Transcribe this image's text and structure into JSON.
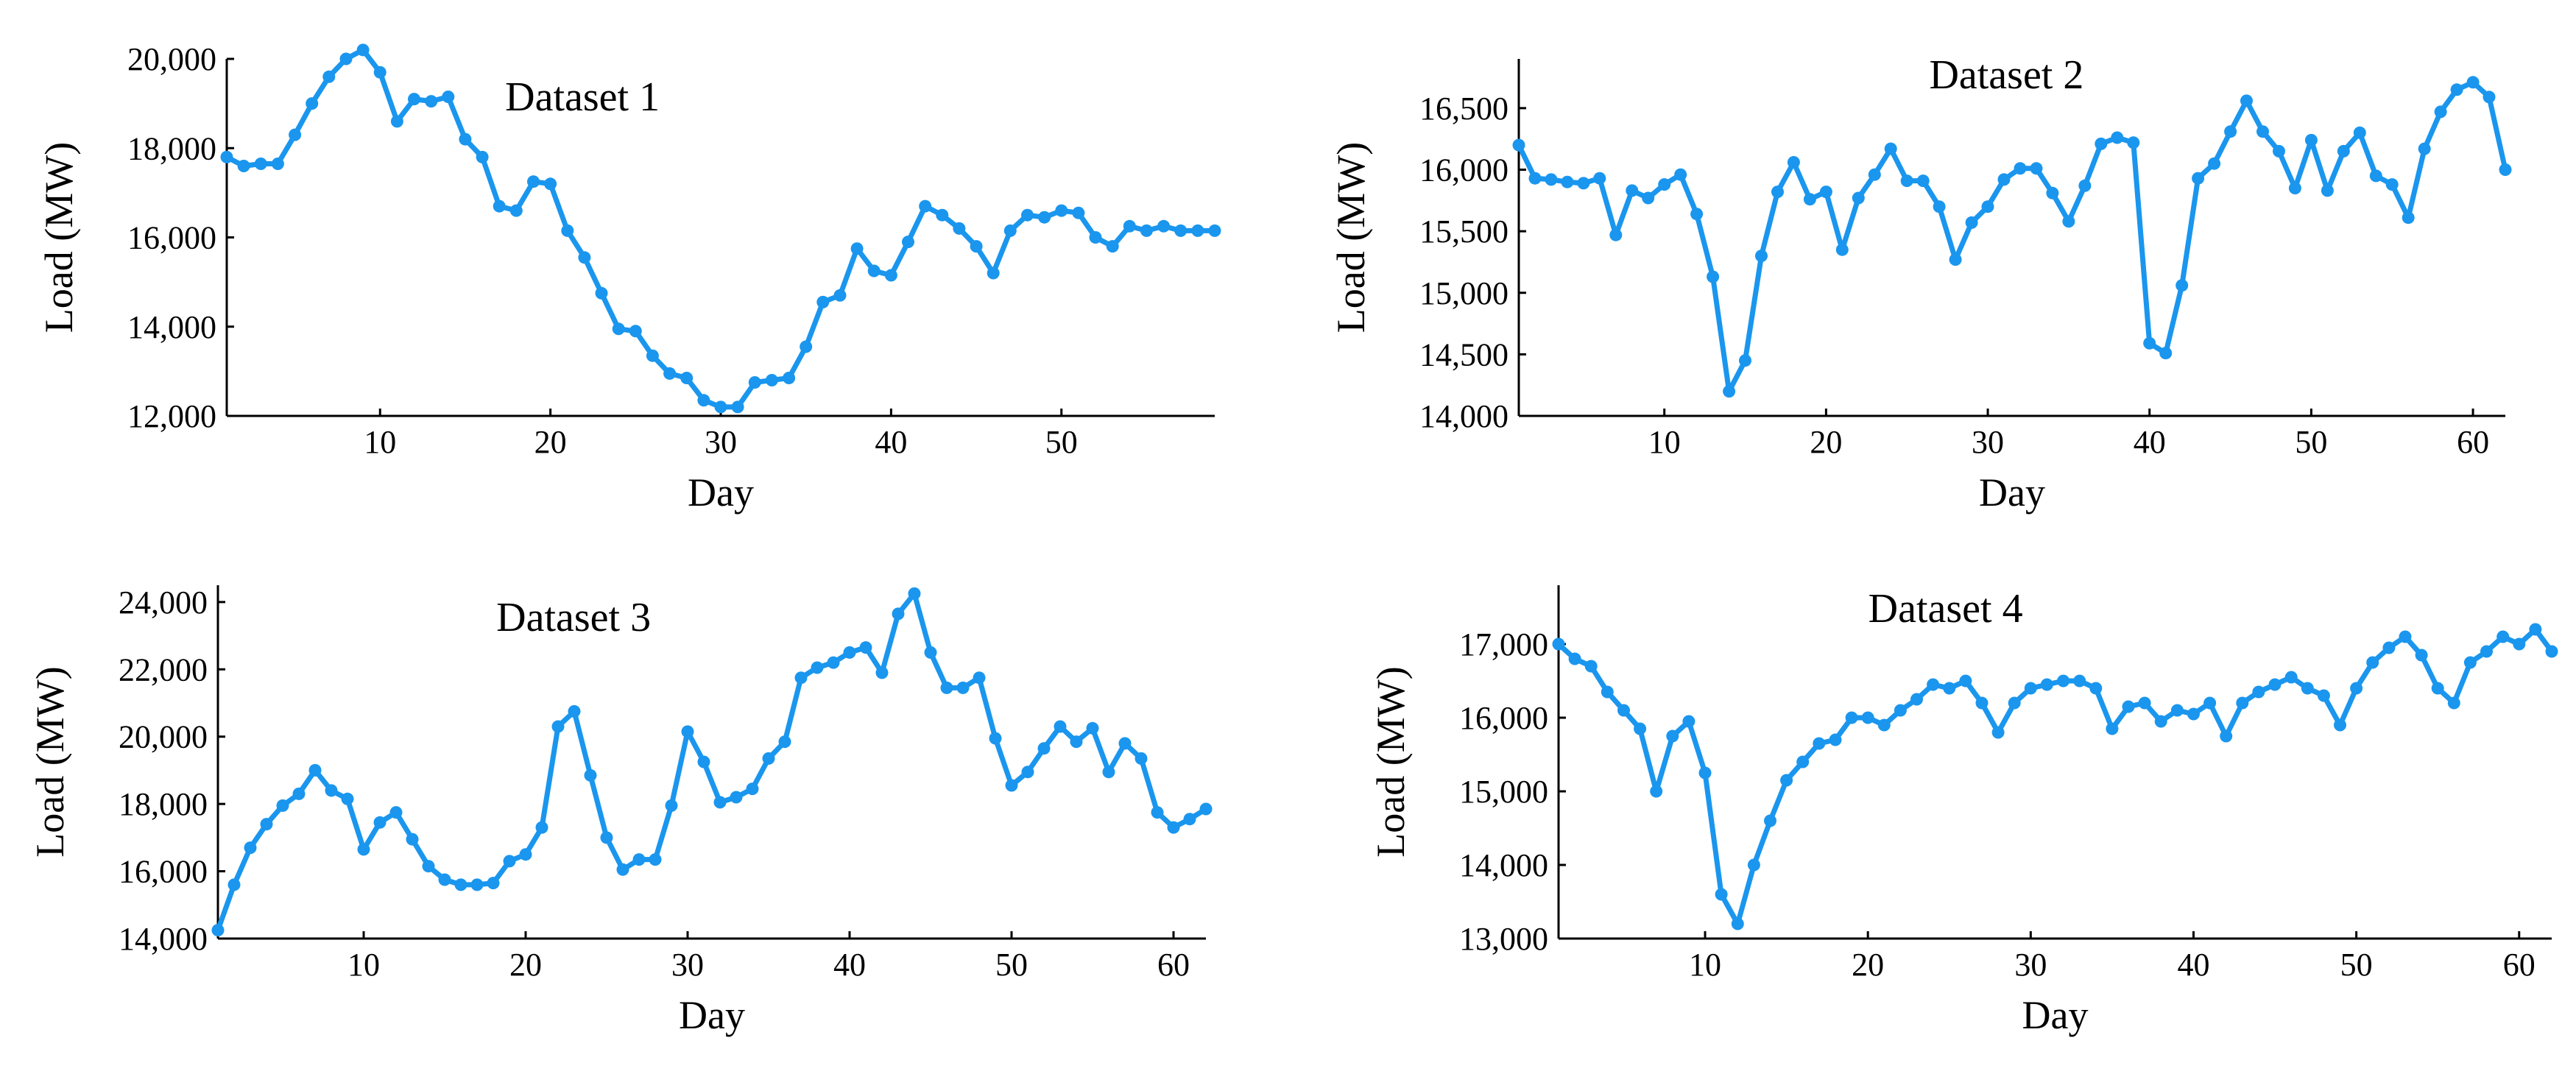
{
  "colors": {
    "series": "#1a96ee",
    "axis": "#000000",
    "background": "#ffffff"
  },
  "chart_data": [
    {
      "type": "line",
      "title": "Dataset 1",
      "xlabel": "Day",
      "ylabel": "Load (MW)",
      "xlim": [
        1,
        59
      ],
      "ylim": [
        12000,
        20000
      ],
      "xticks": [
        10,
        20,
        30,
        40,
        50
      ],
      "yticks": [
        12000,
        14000,
        16000,
        18000,
        20000
      ],
      "ytick_labels": [
        "12,000",
        "14,000",
        "16,000",
        "18,000",
        "20,000"
      ],
      "grid": false,
      "x": [
        1,
        2,
        3,
        4,
        5,
        6,
        7,
        8,
        9,
        10,
        11,
        12,
        13,
        14,
        15,
        16,
        17,
        18,
        19,
        20,
        21,
        22,
        23,
        24,
        25,
        26,
        27,
        28,
        29,
        30,
        31,
        32,
        33,
        34,
        35,
        36,
        37,
        38,
        39,
        40,
        41,
        42,
        43,
        44,
        45,
        46,
        47,
        48,
        49,
        50,
        51,
        52,
        53,
        54,
        55,
        56,
        57,
        58,
        59
      ],
      "series": [
        {
          "values": [
            17800,
            17600,
            17650,
            17650,
            18300,
            19000,
            19600,
            20000,
            20200,
            19700,
            18600,
            19100,
            19050,
            19150,
            18200,
            17800,
            16700,
            16600,
            17250,
            17200,
            16150,
            15550,
            14750,
            13950,
            13900,
            13350,
            12950,
            12850,
            12350,
            12200,
            12200,
            12750,
            12800,
            12850,
            13550,
            14550,
            14700,
            15750,
            15250,
            15150,
            15900,
            16700,
            16500,
            16200,
            15800,
            15200,
            16150,
            16500,
            16450,
            16600,
            16550,
            16000,
            15800,
            16250,
            16150,
            16250,
            16150,
            16150,
            16150
          ]
        }
      ]
    },
    {
      "type": "line",
      "title": "Dataset 2",
      "xlabel": "Day",
      "ylabel": "Load (MW)",
      "xlim": [
        1,
        62
      ],
      "ylim": [
        14000,
        16900
      ],
      "xticks": [
        10,
        20,
        30,
        40,
        50,
        60
      ],
      "yticks": [
        14000,
        14500,
        15000,
        15500,
        16000,
        16500
      ],
      "ytick_labels": [
        "14,000",
        "14,500",
        "15,000",
        "15,500",
        "16,000",
        "16,500"
      ],
      "grid": false,
      "x": [
        1,
        2,
        3,
        4,
        5,
        6,
        7,
        8,
        9,
        10,
        11,
        12,
        13,
        14,
        15,
        16,
        17,
        18,
        19,
        20,
        21,
        22,
        23,
        24,
        25,
        26,
        27,
        28,
        29,
        30,
        31,
        32,
        33,
        34,
        35,
        36,
        37,
        38,
        39,
        40,
        41,
        42,
        43,
        44,
        45,
        46,
        47,
        48,
        49,
        50,
        51,
        52,
        53,
        54,
        55,
        56,
        57,
        58,
        59,
        60,
        61,
        62
      ],
      "series": [
        {
          "values": [
            16200,
            15930,
            15920,
            15900,
            15890,
            15930,
            15470,
            15830,
            15770,
            15880,
            15960,
            15640,
            15130,
            14200,
            14450,
            15300,
            15820,
            16060,
            15760,
            15820,
            15350,
            15770,
            15960,
            16170,
            15910,
            15910,
            15700,
            15270,
            15570,
            15700,
            15920,
            16010,
            16010,
            15810,
            15580,
            15870,
            16210,
            16260,
            16220,
            14590,
            14510,
            15060,
            15930,
            16050,
            16310,
            16560,
            16310,
            16150,
            15850,
            16240,
            15830,
            16150,
            16300,
            15950,
            15880,
            15610,
            16170,
            16470,
            16650,
            16710,
            16590,
            16000
          ]
        }
      ]
    },
    {
      "type": "line",
      "title": "Dataset 3",
      "xlabel": "Day",
      "ylabel": "Load (MW)",
      "xlim": [
        1,
        62
      ],
      "ylim": [
        14000,
        24500
      ],
      "xticks": [
        10,
        20,
        30,
        40,
        50,
        60
      ],
      "yticks": [
        14000,
        16000,
        18000,
        20000,
        22000,
        24000
      ],
      "ytick_labels": [
        "14,000",
        "16,000",
        "18,000",
        "20,000",
        "22,000",
        "24,000"
      ],
      "grid": false,
      "x": [
        1,
        2,
        3,
        4,
        5,
        6,
        7,
        8,
        9,
        10,
        11,
        12,
        13,
        14,
        15,
        16,
        17,
        18,
        19,
        20,
        21,
        22,
        23,
        24,
        25,
        26,
        27,
        28,
        29,
        30,
        31,
        32,
        33,
        34,
        35,
        36,
        37,
        38,
        39,
        40,
        41,
        42,
        43,
        44,
        45,
        46,
        47,
        48,
        49,
        50,
        51,
        52,
        53,
        54,
        55,
        56,
        57,
        58,
        59,
        60,
        61,
        62
      ],
      "series": [
        {
          "values": [
            14250,
            15600,
            16700,
            17400,
            17950,
            18300,
            19000,
            18400,
            18150,
            16650,
            17450,
            17750,
            16950,
            16150,
            15750,
            15600,
            15600,
            15650,
            16300,
            16500,
            17300,
            20300,
            20750,
            18850,
            17000,
            16050,
            16350,
            16350,
            17950,
            20150,
            19250,
            18050,
            18200,
            18450,
            19350,
            19850,
            21750,
            22050,
            22200,
            22500,
            22650,
            21900,
            23650,
            24250,
            22500,
            21450,
            21450,
            21750,
            19950,
            18550,
            18950,
            19650,
            20300,
            19850,
            20250,
            18950,
            19800,
            19350,
            17750,
            17300,
            17550,
            17850
          ]
        }
      ]
    },
    {
      "type": "line",
      "title": "Dataset 4",
      "xlabel": "Day",
      "ylabel": "Load (MW)",
      "xlim": [
        1,
        62
      ],
      "ylim": [
        13000,
        17800
      ],
      "xticks": [
        10,
        20,
        30,
        40,
        50,
        60
      ],
      "yticks": [
        13000,
        14000,
        15000,
        16000,
        17000
      ],
      "ytick_labels": [
        "13,000",
        "14,000",
        "15,000",
        "16,000",
        "17,000"
      ],
      "grid": false,
      "x": [
        1,
        2,
        3,
        4,
        5,
        6,
        7,
        8,
        9,
        10,
        11,
        12,
        13,
        14,
        15,
        16,
        17,
        18,
        19,
        20,
        21,
        22,
        23,
        24,
        25,
        26,
        27,
        28,
        29,
        30,
        31,
        32,
        33,
        34,
        35,
        36,
        37,
        38,
        39,
        40,
        41,
        42,
        43,
        44,
        45,
        46,
        47,
        48,
        49,
        50,
        51,
        52,
        53,
        54,
        55,
        56,
        57,
        58,
        59,
        60,
        61,
        62
      ],
      "series": [
        {
          "values": [
            17000,
            16800,
            16700,
            16350,
            16100,
            15850,
            15000,
            15750,
            15950,
            15250,
            13600,
            13200,
            14000,
            14600,
            15150,
            15400,
            15650,
            15700,
            16000,
            16000,
            15900,
            16100,
            16250,
            16450,
            16400,
            16500,
            16200,
            15800,
            16200,
            16400,
            16450,
            16500,
            16500,
            16400,
            15850,
            16150,
            16200,
            15950,
            16100,
            16050,
            16200,
            15750,
            16200,
            16350,
            16450,
            16550,
            16400,
            16300,
            15900,
            16400,
            16750,
            16950,
            17100,
            16850,
            16400,
            16200,
            16750,
            16900,
            17100,
            17000,
            17200,
            16900
          ]
        }
      ]
    }
  ]
}
